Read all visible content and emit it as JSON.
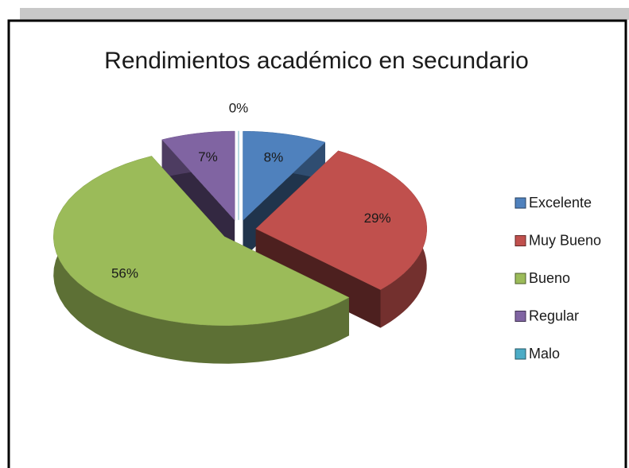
{
  "chart_data": {
    "type": "pie",
    "title": "Rendimientos académico en secundario",
    "categories": [
      "Excelente",
      "Muy Bueno",
      "Bueno",
      "Regular",
      "Malo"
    ],
    "values": [
      8,
      29,
      56,
      7,
      0
    ],
    "value_labels": [
      "8%",
      "29%",
      "56%",
      "7%",
      "0%"
    ],
    "colors": [
      "#4f81bd",
      "#c0504d",
      "#9bbb59",
      "#8064a2",
      "#4bacc6"
    ],
    "legend": "right"
  }
}
